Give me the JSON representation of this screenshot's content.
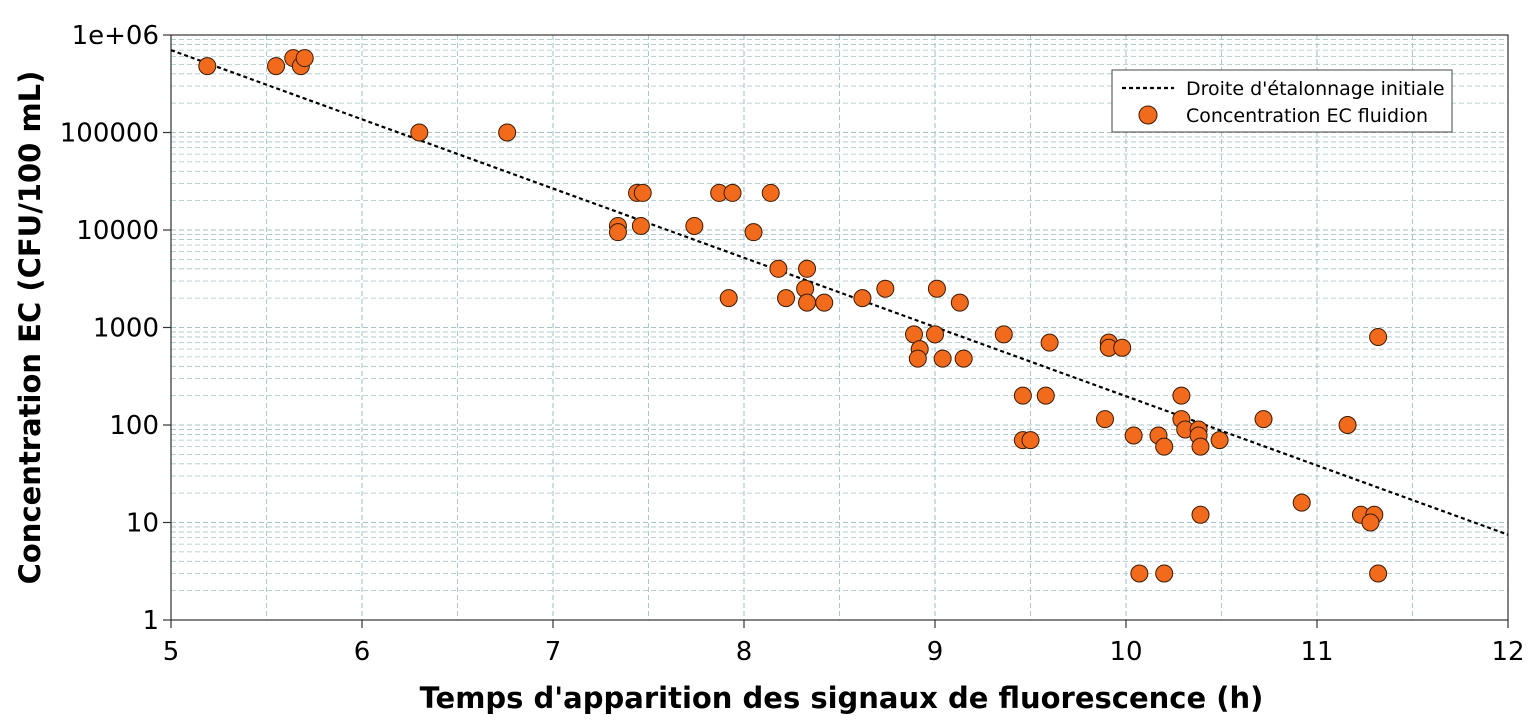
{
  "chart_data": {
    "type": "scatter",
    "title": "",
    "xlabel": "Temps d'apparition des signaux de fluorescence (h)",
    "ylabel": "Concentration EC (CFU/100 mL)",
    "xlim": [
      5,
      12
    ],
    "ylim": [
      1,
      1000000
    ],
    "y_scale": "log",
    "x_ticks": [
      5,
      6,
      7,
      8,
      9,
      10,
      11,
      12
    ],
    "x_tick_labels": [
      "5",
      "6",
      "7",
      "8",
      "9",
      "10",
      "11",
      "12"
    ],
    "y_ticks": [
      1,
      10,
      100,
      1000,
      10000,
      100000,
      1000000
    ],
    "y_tick_labels": [
      "1",
      "10",
      "100",
      "1000",
      "10000",
      "100000",
      "1e+06"
    ],
    "grid": true,
    "legend_position": "top-right",
    "legend": {
      "line_label": "Droite d'étalonnage initiale",
      "points_label": "Concentration EC fluidion"
    },
    "colors": {
      "points_fill": "#f26b1d",
      "points_stroke": "#3a1a00",
      "line": "#000000",
      "grid": "#a8c4c8"
    },
    "series": [
      {
        "name": "Droite d'étalonnage initiale",
        "type": "line",
        "style": "dotted",
        "x": [
          5,
          12
        ],
        "y": [
          700000,
          7.5
        ]
      },
      {
        "name": "Concentration EC fluidion",
        "type": "scatter",
        "points": [
          [
            5.19,
            480000
          ],
          [
            5.55,
            480000
          ],
          [
            5.64,
            580000
          ],
          [
            5.68,
            480000
          ],
          [
            5.7,
            580000
          ],
          [
            6.3,
            100000
          ],
          [
            6.76,
            100000
          ],
          [
            7.34,
            11000
          ],
          [
            7.34,
            9500
          ],
          [
            7.44,
            24000
          ],
          [
            7.47,
            24000
          ],
          [
            7.46,
            11000
          ],
          [
            7.74,
            11000
          ],
          [
            7.87,
            24000
          ],
          [
            7.94,
            24000
          ],
          [
            8.14,
            24000
          ],
          [
            8.05,
            9500
          ],
          [
            7.92,
            2000
          ],
          [
            8.18,
            4000
          ],
          [
            8.22,
            2000
          ],
          [
            8.33,
            4000
          ],
          [
            8.32,
            2500
          ],
          [
            8.33,
            1800
          ],
          [
            8.42,
            1800
          ],
          [
            8.62,
            2000
          ],
          [
            8.74,
            2500
          ],
          [
            9.01,
            2500
          ],
          [
            9.13,
            1800
          ],
          [
            8.89,
            850
          ],
          [
            8.92,
            600
          ],
          [
            8.91,
            480
          ],
          [
            9.0,
            850
          ],
          [
            9.04,
            480
          ],
          [
            9.15,
            480
          ],
          [
            9.36,
            850
          ],
          [
            9.6,
            700
          ],
          [
            9.91,
            700
          ],
          [
            9.91,
            620
          ],
          [
            9.98,
            620
          ],
          [
            11.32,
            800
          ],
          [
            9.46,
            200
          ],
          [
            9.58,
            200
          ],
          [
            9.46,
            70
          ],
          [
            9.5,
            70
          ],
          [
            9.89,
            115
          ],
          [
            10.04,
            78
          ],
          [
            10.17,
            78
          ],
          [
            10.2,
            60
          ],
          [
            10.29,
            200
          ],
          [
            10.29,
            115
          ],
          [
            10.31,
            90
          ],
          [
            10.38,
            90
          ],
          [
            10.38,
            78
          ],
          [
            10.39,
            60
          ],
          [
            10.49,
            70
          ],
          [
            10.72,
            115
          ],
          [
            11.16,
            100
          ],
          [
            10.39,
            12
          ],
          [
            10.92,
            16
          ],
          [
            11.23,
            12
          ],
          [
            11.3,
            12
          ],
          [
            11.28,
            10
          ],
          [
            10.07,
            3
          ],
          [
            10.2,
            3
          ],
          [
            11.32,
            3
          ]
        ]
      }
    ]
  }
}
